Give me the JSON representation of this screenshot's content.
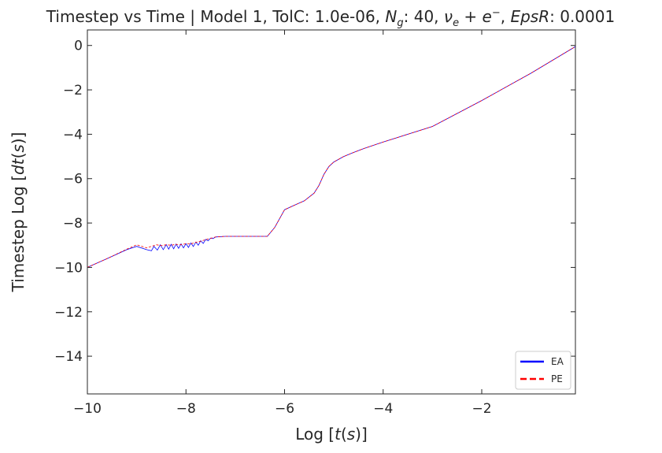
{
  "chart_data": {
    "type": "line",
    "title": {
      "prefix": "Timestep vs Time | Model 1, TolC: 1.0e-06, ",
      "ng_symbol": "N",
      "ng_sub": "g",
      "ng_value": ": 40,  ",
      "nu": "ν",
      "nu_sub": "e",
      "plus": " + e",
      "minus_sup": "−",
      "eps_label": ", ",
      "eps_symbol": "EpsR",
      "eps_value": ": 0.0001"
    },
    "xlabel": {
      "prefix": "Log [",
      "var": "t",
      "paren": "(",
      "unit": "s",
      "suffix": ")]"
    },
    "ylabel": {
      "prefix": "Timestep Log [",
      "var": "dt",
      "paren": "(",
      "unit": "s",
      "suffix": ")]"
    },
    "xlim": [
      -10,
      -0.1
    ],
    "ylim": [
      -15.7,
      0.7
    ],
    "xticks": [
      -10,
      -8,
      -6,
      -4,
      -2
    ],
    "yticks": [
      0,
      -2,
      -4,
      -6,
      -8,
      -10,
      -12,
      -14
    ],
    "grid": false,
    "legend_position": "lower-right",
    "series": [
      {
        "name": "EA",
        "color": "#0000ff",
        "dash": "solid",
        "points": [
          [
            -10,
            -10
          ],
          [
            -9.6,
            -9.6
          ],
          [
            -9.2,
            -9.2
          ],
          [
            -9.0,
            -9.05
          ],
          [
            -8.8,
            -9.2
          ],
          [
            -8.7,
            -9.25
          ],
          [
            -8.65,
            -9.05
          ],
          [
            -8.58,
            -9.22
          ],
          [
            -8.52,
            -8.98
          ],
          [
            -8.46,
            -9.2
          ],
          [
            -8.4,
            -8.97
          ],
          [
            -8.35,
            -9.18
          ],
          [
            -8.3,
            -8.96
          ],
          [
            -8.25,
            -9.16
          ],
          [
            -8.2,
            -8.95
          ],
          [
            -8.15,
            -9.14
          ],
          [
            -8.1,
            -8.94
          ],
          [
            -8.05,
            -9.12
          ],
          [
            -8.0,
            -8.93
          ],
          [
            -7.95,
            -9.1
          ],
          [
            -7.9,
            -8.9
          ],
          [
            -7.85,
            -9.06
          ],
          [
            -7.8,
            -8.86
          ],
          [
            -7.75,
            -9.0
          ],
          [
            -7.7,
            -8.8
          ],
          [
            -7.65,
            -8.92
          ],
          [
            -7.6,
            -8.74
          ],
          [
            -7.55,
            -8.8
          ],
          [
            -7.5,
            -8.68
          ],
          [
            -7.45,
            -8.7
          ],
          [
            -7.4,
            -8.63
          ],
          [
            -7.2,
            -8.6
          ],
          [
            -6.8,
            -8.6
          ],
          [
            -6.35,
            -8.6
          ],
          [
            -6.2,
            -8.2
          ],
          [
            -6.0,
            -7.4
          ],
          [
            -5.8,
            -7.2
          ],
          [
            -5.6,
            -7.0
          ],
          [
            -5.4,
            -6.65
          ],
          [
            -5.3,
            -6.3
          ],
          [
            -5.2,
            -5.8
          ],
          [
            -5.1,
            -5.45
          ],
          [
            -5.0,
            -5.25
          ],
          [
            -4.8,
            -5.0
          ],
          [
            -4.6,
            -4.82
          ],
          [
            -4.4,
            -4.65
          ],
          [
            -4.2,
            -4.5
          ],
          [
            -4.0,
            -4.35
          ],
          [
            -3.0,
            -3.65
          ],
          [
            -2.0,
            -2.48
          ],
          [
            -1.0,
            -1.25
          ],
          [
            -0.1,
            -0.05
          ]
        ]
      },
      {
        "name": "PE",
        "color": "#ff0000",
        "dash": "dashed",
        "points": [
          [
            -10,
            -10
          ],
          [
            -9.6,
            -9.6
          ],
          [
            -9.2,
            -9.18
          ],
          [
            -9.0,
            -8.98
          ],
          [
            -8.8,
            -9.12
          ],
          [
            -8.7,
            -9.05
          ],
          [
            -8.6,
            -8.98
          ],
          [
            -8.5,
            -9.02
          ],
          [
            -8.4,
            -8.98
          ],
          [
            -8.3,
            -9.0
          ],
          [
            -8.2,
            -8.96
          ],
          [
            -8.1,
            -8.98
          ],
          [
            -8.0,
            -8.93
          ],
          [
            -7.9,
            -8.94
          ],
          [
            -7.8,
            -8.87
          ],
          [
            -7.7,
            -8.82
          ],
          [
            -7.6,
            -8.75
          ],
          [
            -7.5,
            -8.69
          ],
          [
            -7.4,
            -8.63
          ],
          [
            -7.2,
            -8.6
          ],
          [
            -6.8,
            -8.6
          ],
          [
            -6.35,
            -8.6
          ],
          [
            -6.2,
            -8.2
          ],
          [
            -6.0,
            -7.4
          ],
          [
            -5.8,
            -7.2
          ],
          [
            -5.6,
            -7.0
          ],
          [
            -5.4,
            -6.65
          ],
          [
            -5.3,
            -6.3
          ],
          [
            -5.2,
            -5.8
          ],
          [
            -5.1,
            -5.45
          ],
          [
            -5.0,
            -5.25
          ],
          [
            -4.8,
            -5.0
          ],
          [
            -4.6,
            -4.82
          ],
          [
            -4.4,
            -4.65
          ],
          [
            -4.2,
            -4.5
          ],
          [
            -4.0,
            -4.35
          ],
          [
            -3.0,
            -3.65
          ],
          [
            -2.0,
            -2.48
          ],
          [
            -1.0,
            -1.25
          ],
          [
            -0.1,
            -0.05
          ]
        ]
      }
    ]
  }
}
